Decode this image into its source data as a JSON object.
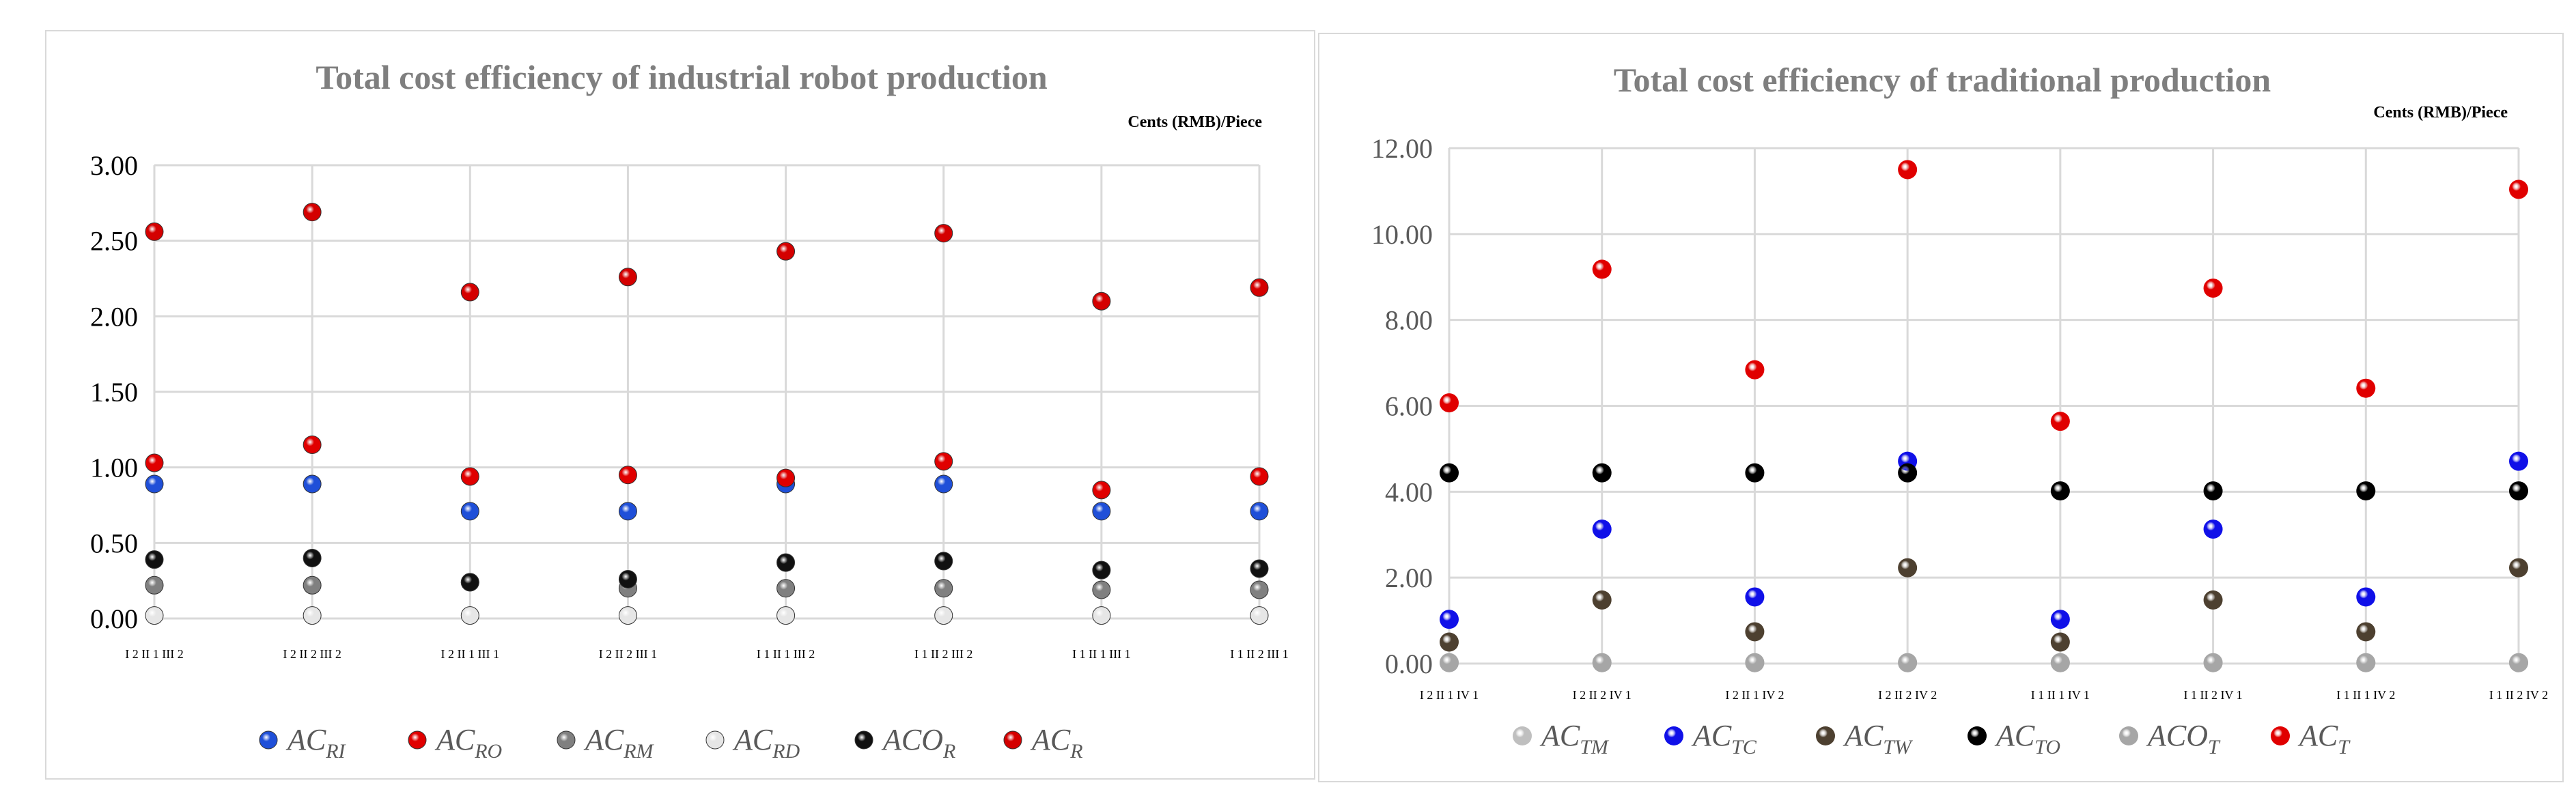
{
  "chart_data": [
    {
      "type": "scatter",
      "title": "Total cost efficiency of industrial robot production",
      "unit_label": "Cents (RMB)/Piece",
      "categories": [
        "I 2 II 1 III 2",
        "I 2 II 2 III 2",
        "I 2 II 1 III 1",
        "I 2 II 2 III 1",
        "I 1 II 1 III 2",
        "I 1 II 2 III 2",
        "I 1 II 1 III 1",
        "I 1 II 2 III 1"
      ],
      "ylim": [
        0,
        3
      ],
      "yticks": [
        "0.00",
        "0.50",
        "1.00",
        "1.50",
        "2.00",
        "2.50",
        "3.00"
      ],
      "series": [
        {
          "name": "AC",
          "sub": "RI",
          "color": "#1f4fd8",
          "values": [
            0.89,
            0.89,
            0.71,
            0.71,
            0.89,
            0.89,
            0.71,
            0.71
          ]
        },
        {
          "name": "AC",
          "sub": "RO",
          "color": "#e00000",
          "values": [
            1.03,
            1.15,
            0.94,
            0.95,
            0.93,
            1.04,
            0.85,
            0.94
          ]
        },
        {
          "name": "AC",
          "sub": "RM",
          "color": "#808080",
          "values": [
            0.22,
            0.22,
            0.24,
            0.2,
            0.2,
            0.2,
            0.19,
            0.19
          ]
        },
        {
          "name": "AC",
          "sub": "RD",
          "color": "#e6e6e6",
          "values": [
            0.02,
            0.02,
            0.02,
            0.02,
            0.02,
            0.02,
            0.02,
            0.02
          ]
        },
        {
          "name": "ACO",
          "sub": "R",
          "color": "#111111",
          "values": [
            0.39,
            0.4,
            0.24,
            0.26,
            0.37,
            0.38,
            0.32,
            0.33
          ]
        },
        {
          "name": "AC",
          "sub": "R",
          "color": "#d40000",
          "values": [
            2.56,
            2.69,
            2.16,
            2.26,
            2.43,
            2.55,
            2.1,
            2.19
          ]
        }
      ]
    },
    {
      "type": "scatter",
      "title": "Total cost efficiency of traditional production",
      "unit_label": "Cents (RMB)/Piece",
      "categories": [
        "I 2 II 1 IV 1",
        "I 2 II 2 IV 1",
        "I 2 II 1 IV 2",
        "I 2 II 2 IV 2",
        "I 1 II 1 IV 1",
        "I 1 II 2 IV 1",
        "I 1 II 1 IV 2",
        "I 1 II 2 IV 2"
      ],
      "ylim": [
        0,
        12
      ],
      "yticks": [
        "0.00",
        "2.00",
        "4.00",
        "6.00",
        "8.00",
        "10.00",
        "12.00"
      ],
      "series": [
        {
          "name": "AC",
          "sub": "TM",
          "color": "#bfbfbf",
          "values": [
            0.02,
            0.02,
            0.02,
            0.02,
            0.02,
            0.02,
            0.02,
            0.02
          ]
        },
        {
          "name": "AC",
          "sub": "TC",
          "color": "#1010e8",
          "values": [
            1.03,
            3.13,
            1.55,
            4.71,
            1.03,
            3.13,
            1.55,
            4.71
          ]
        },
        {
          "name": "AC",
          "sub": "TW",
          "color": "#4d4030",
          "values": [
            0.5,
            1.48,
            0.74,
            2.23,
            0.5,
            1.48,
            0.74,
            2.23
          ]
        },
        {
          "name": "AC",
          "sub": "TO",
          "color": "#000000",
          "values": [
            4.44,
            4.44,
            4.44,
            4.44,
            4.02,
            4.02,
            4.02,
            4.02
          ]
        },
        {
          "name": "ACO",
          "sub": "T",
          "color": "#a6a6a6",
          "values": [
            0.02,
            0.02,
            0.02,
            0.02,
            0.02,
            0.02,
            0.02,
            0.02
          ]
        },
        {
          "name": "AC",
          "sub": "T",
          "color": "#e00000",
          "values": [
            6.07,
            9.18,
            6.84,
            11.5,
            5.64,
            8.74,
            6.41,
            11.04
          ]
        }
      ]
    }
  ]
}
